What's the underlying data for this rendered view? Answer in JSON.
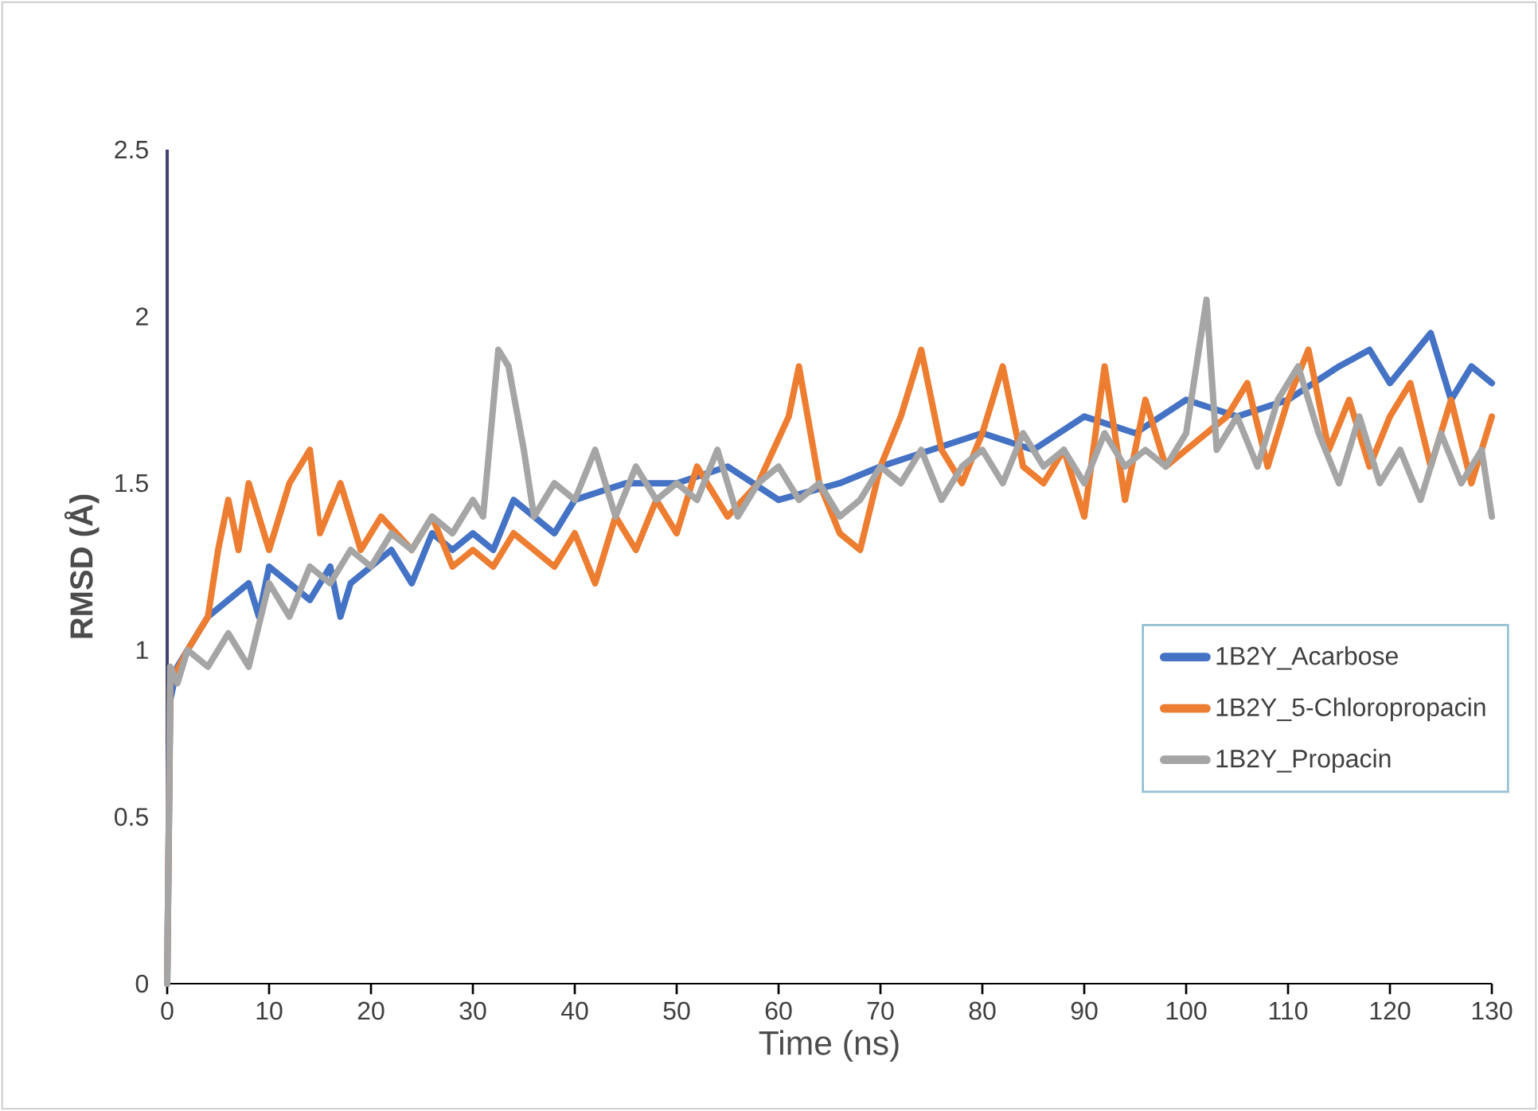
{
  "chart_data": {
    "type": "line",
    "xlabel": "Time (ns)",
    "ylabel": "RMSD (Å)",
    "xlim": [
      0,
      130
    ],
    "xticks": [
      0,
      10,
      20,
      30,
      40,
      50,
      60,
      70,
      80,
      90,
      100,
      110,
      120,
      130
    ],
    "ylim": [
      0,
      2.5
    ],
    "yticks": [
      0,
      0.5,
      1,
      1.5,
      2,
      2.5
    ],
    "grid": false,
    "legend": "right",
    "marker": "none",
    "line_style": "solid",
    "series": [
      {
        "name": "1B2Y_Acarbose",
        "color": "#4472c4",
        "x": [
          0,
          0.3,
          1,
          2,
          4,
          6,
          8,
          9,
          10,
          12,
          14,
          16,
          17,
          18,
          20,
          22,
          24,
          26,
          28,
          30,
          32,
          34,
          36,
          38,
          40,
          45,
          50,
          55,
          60,
          66,
          70,
          75,
          80,
          85,
          90,
          95,
          100,
          105,
          110,
          115,
          118,
          120,
          124,
          126,
          128,
          130
        ],
        "values": [
          0,
          0.85,
          0.95,
          1.0,
          1.1,
          1.15,
          1.2,
          1.1,
          1.25,
          1.2,
          1.15,
          1.25,
          1.1,
          1.2,
          1.25,
          1.3,
          1.2,
          1.35,
          1.3,
          1.35,
          1.3,
          1.45,
          1.4,
          1.35,
          1.45,
          1.5,
          1.5,
          1.55,
          1.45,
          1.5,
          1.55,
          1.6,
          1.65,
          1.6,
          1.7,
          1.65,
          1.75,
          1.7,
          1.75,
          1.85,
          1.9,
          1.8,
          1.95,
          1.75,
          1.85,
          1.8
        ]
      },
      {
        "name": "1B2Y_5-Chloropropacin",
        "color": "#ed7d31",
        "x": [
          0,
          0.3,
          2,
          4,
          5,
          6,
          7,
          8,
          10,
          12,
          14,
          15,
          17,
          19,
          21,
          24,
          26,
          28,
          30,
          32,
          34,
          36,
          38,
          40,
          42,
          44,
          46,
          48,
          50,
          52,
          55,
          58,
          61,
          62,
          64,
          66,
          68,
          70,
          72,
          74,
          76,
          78,
          80,
          82,
          84,
          86,
          88,
          90,
          92,
          94,
          96,
          98,
          100,
          104,
          106,
          108,
          110,
          112,
          114,
          116,
          118,
          120,
          122,
          124,
          126,
          128,
          130
        ],
        "values": [
          0,
          0.9,
          1.0,
          1.1,
          1.3,
          1.45,
          1.3,
          1.5,
          1.3,
          1.5,
          1.6,
          1.35,
          1.5,
          1.3,
          1.4,
          1.3,
          1.4,
          1.25,
          1.3,
          1.25,
          1.35,
          1.3,
          1.25,
          1.35,
          1.2,
          1.4,
          1.3,
          1.45,
          1.35,
          1.55,
          1.4,
          1.5,
          1.7,
          1.85,
          1.5,
          1.35,
          1.3,
          1.55,
          1.7,
          1.9,
          1.6,
          1.5,
          1.65,
          1.85,
          1.55,
          1.5,
          1.6,
          1.4,
          1.85,
          1.45,
          1.75,
          1.55,
          1.6,
          1.7,
          1.8,
          1.55,
          1.75,
          1.9,
          1.6,
          1.75,
          1.55,
          1.7,
          1.8,
          1.55,
          1.75,
          1.5,
          1.7
        ]
      },
      {
        "name": "1B2Y_Propacin",
        "color": "#a5a5a5",
        "x": [
          0,
          0.3,
          1,
          2,
          4,
          6,
          8,
          10,
          12,
          14,
          16,
          18,
          20,
          22,
          24,
          26,
          28,
          30,
          31,
          32.5,
          33.5,
          35,
          36,
          38,
          40,
          42,
          44,
          46,
          48,
          50,
          52,
          54,
          56,
          58,
          60,
          62,
          64,
          66,
          68,
          70,
          72,
          74,
          76,
          78,
          80,
          82,
          84,
          86,
          88,
          90,
          92,
          94,
          96,
          98,
          100,
          102,
          103,
          105,
          107,
          109,
          111,
          113,
          115,
          117,
          119,
          121,
          123,
          125,
          127,
          129,
          130
        ],
        "values": [
          0,
          0.95,
          0.9,
          1.0,
          0.95,
          1.05,
          0.95,
          1.2,
          1.1,
          1.25,
          1.2,
          1.3,
          1.25,
          1.35,
          1.3,
          1.4,
          1.35,
          1.45,
          1.4,
          1.9,
          1.85,
          1.6,
          1.4,
          1.5,
          1.45,
          1.6,
          1.4,
          1.55,
          1.45,
          1.5,
          1.45,
          1.6,
          1.4,
          1.5,
          1.55,
          1.45,
          1.5,
          1.4,
          1.45,
          1.55,
          1.5,
          1.6,
          1.45,
          1.55,
          1.6,
          1.5,
          1.65,
          1.55,
          1.6,
          1.5,
          1.65,
          1.55,
          1.6,
          1.55,
          1.65,
          2.05,
          1.6,
          1.7,
          1.55,
          1.75,
          1.85,
          1.65,
          1.5,
          1.7,
          1.5,
          1.6,
          1.45,
          1.65,
          1.5,
          1.6,
          1.4
        ]
      }
    ]
  }
}
